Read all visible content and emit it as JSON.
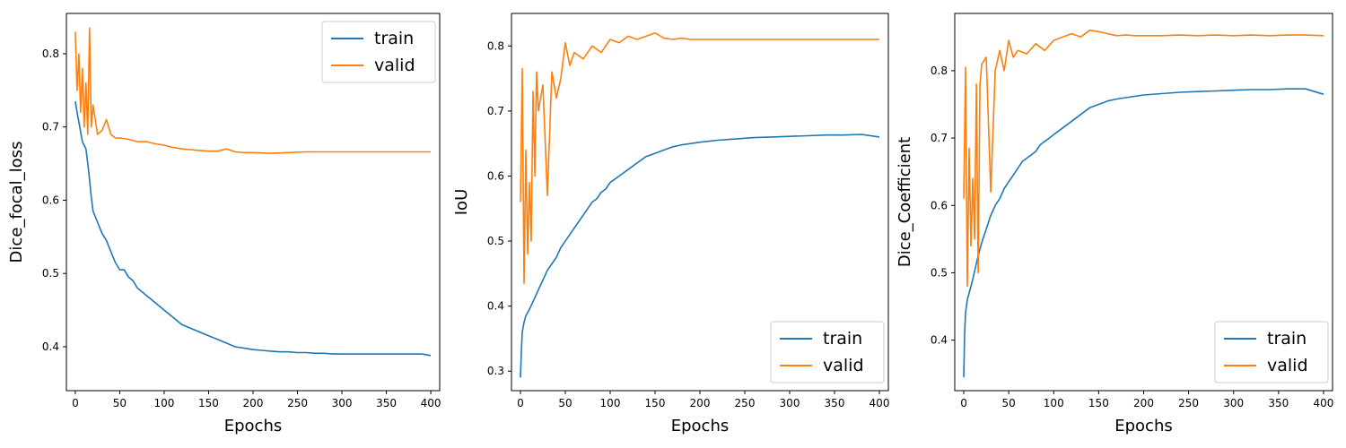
{
  "chart_data": [
    {
      "type": "line",
      "title": "",
      "xlabel": "Epochs",
      "ylabel": "Dice_focal_loss",
      "xlim": [
        -10,
        410
      ],
      "ylim": [
        0.34,
        0.855
      ],
      "xticks": [
        0,
        50,
        100,
        150,
        200,
        250,
        300,
        350,
        400
      ],
      "yticks": [
        0.4,
        0.5,
        0.6,
        0.7,
        0.8
      ],
      "legend_position": "top-right",
      "series": [
        {
          "name": "train",
          "color": "#1f77b4",
          "x": [
            0,
            2,
            5,
            8,
            10,
            12,
            15,
            18,
            20,
            25,
            30,
            35,
            40,
            45,
            50,
            55,
            60,
            65,
            70,
            75,
            80,
            85,
            90,
            95,
            100,
            110,
            120,
            130,
            140,
            150,
            160,
            170,
            180,
            190,
            200,
            210,
            220,
            230,
            240,
            250,
            260,
            270,
            280,
            290,
            300,
            310,
            320,
            330,
            340,
            350,
            360,
            370,
            380,
            390,
            400
          ],
          "y": [
            0.735,
            0.72,
            0.7,
            0.68,
            0.675,
            0.67,
            0.64,
            0.605,
            0.585,
            0.57,
            0.555,
            0.545,
            0.53,
            0.515,
            0.505,
            0.505,
            0.495,
            0.49,
            0.48,
            0.475,
            0.47,
            0.465,
            0.46,
            0.455,
            0.45,
            0.44,
            0.43,
            0.425,
            0.42,
            0.415,
            0.41,
            0.405,
            0.4,
            0.398,
            0.396,
            0.395,
            0.394,
            0.393,
            0.393,
            0.392,
            0.392,
            0.391,
            0.391,
            0.39,
            0.39,
            0.39,
            0.39,
            0.39,
            0.39,
            0.39,
            0.39,
            0.39,
            0.39,
            0.39,
            0.388
          ]
        },
        {
          "name": "valid",
          "color": "#ff7f0e",
          "x": [
            0,
            2,
            4,
            6,
            8,
            10,
            12,
            14,
            16,
            18,
            20,
            25,
            30,
            35,
            40,
            45,
            50,
            60,
            70,
            80,
            90,
            100,
            110,
            120,
            130,
            140,
            150,
            160,
            170,
            180,
            190,
            200,
            220,
            240,
            260,
            280,
            300,
            320,
            340,
            360,
            380,
            400
          ],
          "y": [
            0.83,
            0.75,
            0.8,
            0.72,
            0.78,
            0.7,
            0.76,
            0.69,
            0.835,
            0.7,
            0.73,
            0.69,
            0.695,
            0.71,
            0.69,
            0.685,
            0.685,
            0.683,
            0.68,
            0.68,
            0.677,
            0.675,
            0.672,
            0.67,
            0.669,
            0.668,
            0.667,
            0.667,
            0.67,
            0.666,
            0.665,
            0.665,
            0.664,
            0.665,
            0.666,
            0.666,
            0.666,
            0.666,
            0.666,
            0.666,
            0.666,
            0.666
          ]
        }
      ]
    },
    {
      "type": "line",
      "title": "",
      "xlabel": "Epochs",
      "ylabel": "IoU",
      "xlim": [
        -10,
        410
      ],
      "ylim": [
        0.27,
        0.85
      ],
      "xticks": [
        0,
        50,
        100,
        150,
        200,
        250,
        300,
        350,
        400
      ],
      "yticks": [
        0.3,
        0.4,
        0.5,
        0.6,
        0.7,
        0.8
      ],
      "legend_position": "bottom-right",
      "series": [
        {
          "name": "train",
          "color": "#1f77b4",
          "x": [
            0,
            1,
            2,
            4,
            6,
            8,
            10,
            15,
            20,
            25,
            30,
            35,
            40,
            45,
            50,
            55,
            60,
            65,
            70,
            75,
            80,
            85,
            90,
            95,
            100,
            110,
            120,
            130,
            140,
            150,
            160,
            170,
            180,
            190,
            200,
            220,
            240,
            260,
            280,
            300,
            320,
            340,
            360,
            380,
            400
          ],
          "y": [
            0.29,
            0.33,
            0.36,
            0.375,
            0.385,
            0.39,
            0.395,
            0.41,
            0.425,
            0.44,
            0.455,
            0.465,
            0.475,
            0.49,
            0.5,
            0.51,
            0.52,
            0.53,
            0.54,
            0.55,
            0.56,
            0.565,
            0.575,
            0.58,
            0.59,
            0.6,
            0.61,
            0.62,
            0.63,
            0.635,
            0.64,
            0.645,
            0.648,
            0.65,
            0.652,
            0.655,
            0.657,
            0.659,
            0.66,
            0.661,
            0.662,
            0.663,
            0.663,
            0.664,
            0.66
          ]
        },
        {
          "name": "valid",
          "color": "#ff7f0e",
          "x": [
            0,
            2,
            4,
            6,
            8,
            10,
            12,
            14,
            16,
            18,
            20,
            25,
            30,
            35,
            40,
            45,
            50,
            55,
            60,
            70,
            80,
            90,
            100,
            110,
            120,
            130,
            140,
            150,
            160,
            170,
            180,
            190,
            200,
            220,
            240,
            260,
            280,
            300,
            320,
            340,
            360,
            380,
            400
          ],
          "y": [
            0.56,
            0.765,
            0.435,
            0.64,
            0.48,
            0.59,
            0.5,
            0.73,
            0.6,
            0.76,
            0.7,
            0.74,
            0.57,
            0.76,
            0.72,
            0.75,
            0.805,
            0.77,
            0.79,
            0.78,
            0.8,
            0.79,
            0.81,
            0.805,
            0.815,
            0.81,
            0.815,
            0.82,
            0.812,
            0.81,
            0.812,
            0.81,
            0.81,
            0.81,
            0.81,
            0.81,
            0.81,
            0.81,
            0.81,
            0.81,
            0.81,
            0.81,
            0.81
          ]
        }
      ]
    },
    {
      "type": "line",
      "title": "",
      "xlabel": "Epochs",
      "ylabel": "Dice_Coefficient",
      "xlim": [
        -10,
        410
      ],
      "ylim": [
        0.325,
        0.885
      ],
      "xticks": [
        0,
        50,
        100,
        150,
        200,
        250,
        300,
        350,
        400
      ],
      "yticks": [
        0.4,
        0.5,
        0.6,
        0.7,
        0.8
      ],
      "legend_position": "bottom-right",
      "series": [
        {
          "name": "train",
          "color": "#1f77b4",
          "x": [
            0,
            1,
            2,
            4,
            6,
            8,
            10,
            15,
            20,
            25,
            30,
            35,
            40,
            45,
            50,
            55,
            60,
            65,
            70,
            75,
            80,
            85,
            90,
            95,
            100,
            110,
            120,
            130,
            140,
            150,
            160,
            170,
            180,
            190,
            200,
            220,
            240,
            260,
            280,
            300,
            320,
            340,
            360,
            380,
            400
          ],
          "y": [
            0.345,
            0.41,
            0.44,
            0.46,
            0.47,
            0.48,
            0.49,
            0.52,
            0.545,
            0.565,
            0.585,
            0.6,
            0.61,
            0.625,
            0.635,
            0.645,
            0.655,
            0.665,
            0.67,
            0.675,
            0.68,
            0.69,
            0.695,
            0.7,
            0.705,
            0.715,
            0.725,
            0.735,
            0.745,
            0.75,
            0.755,
            0.758,
            0.76,
            0.762,
            0.764,
            0.766,
            0.768,
            0.769,
            0.77,
            0.771,
            0.772,
            0.772,
            0.773,
            0.773,
            0.765
          ]
        },
        {
          "name": "valid",
          "color": "#ff7f0e",
          "x": [
            0,
            2,
            4,
            6,
            8,
            10,
            12,
            14,
            16,
            18,
            20,
            25,
            30,
            35,
            40,
            45,
            50,
            55,
            60,
            70,
            80,
            90,
            100,
            110,
            120,
            130,
            140,
            150,
            160,
            170,
            180,
            190,
            200,
            220,
            240,
            260,
            280,
            300,
            320,
            340,
            360,
            380,
            400
          ],
          "y": [
            0.61,
            0.805,
            0.48,
            0.685,
            0.54,
            0.64,
            0.55,
            0.78,
            0.5,
            0.78,
            0.81,
            0.82,
            0.62,
            0.8,
            0.83,
            0.8,
            0.845,
            0.82,
            0.83,
            0.825,
            0.84,
            0.83,
            0.845,
            0.85,
            0.855,
            0.85,
            0.86,
            0.858,
            0.855,
            0.852,
            0.853,
            0.852,
            0.852,
            0.852,
            0.853,
            0.852,
            0.853,
            0.852,
            0.853,
            0.852,
            0.853,
            0.853,
            0.852
          ]
        }
      ]
    }
  ]
}
